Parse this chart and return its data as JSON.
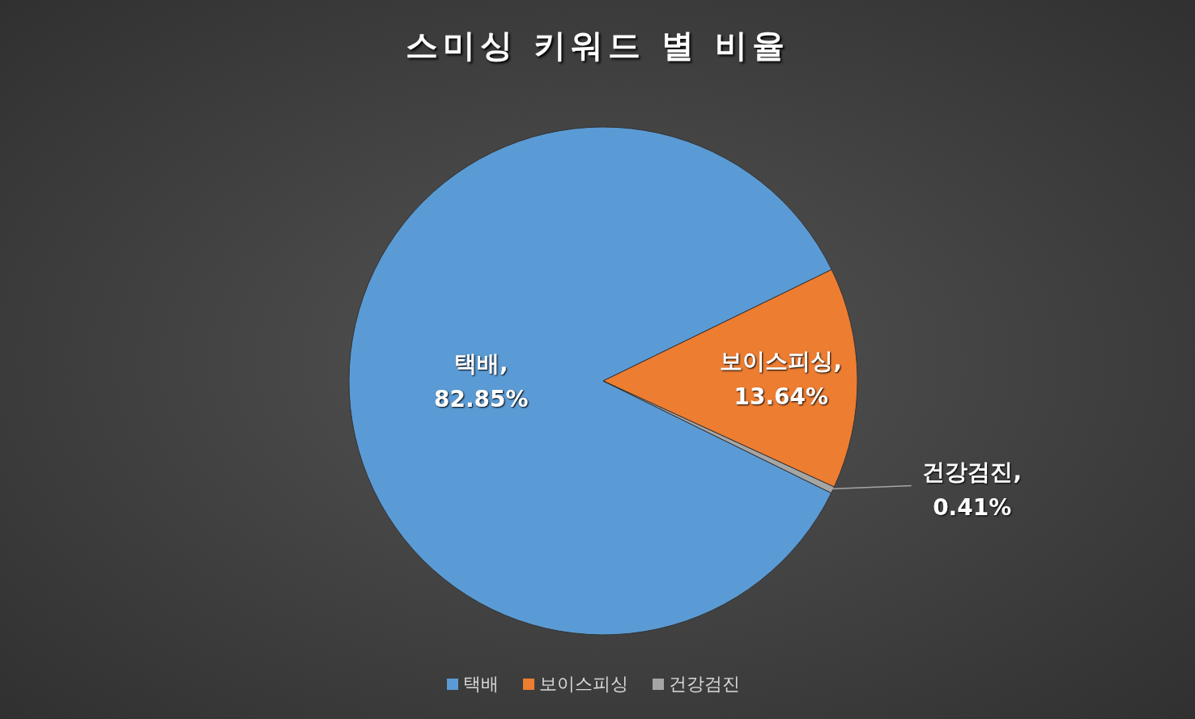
{
  "chart_data": {
    "type": "pie",
    "title": "스미싱 키워드 별 비율",
    "categories": [
      "택배",
      "보이스피싱",
      "건강검진"
    ],
    "values": [
      82.85,
      13.64,
      0.41
    ],
    "colors": [
      "#5b9bd5",
      "#ed7d31",
      "#a5a5a5"
    ],
    "value_labels": [
      "택배,\n82.85%",
      "보이스피싱,\n13.64%",
      "건강검진,\n0.41%"
    ],
    "legend": "bottom"
  }
}
